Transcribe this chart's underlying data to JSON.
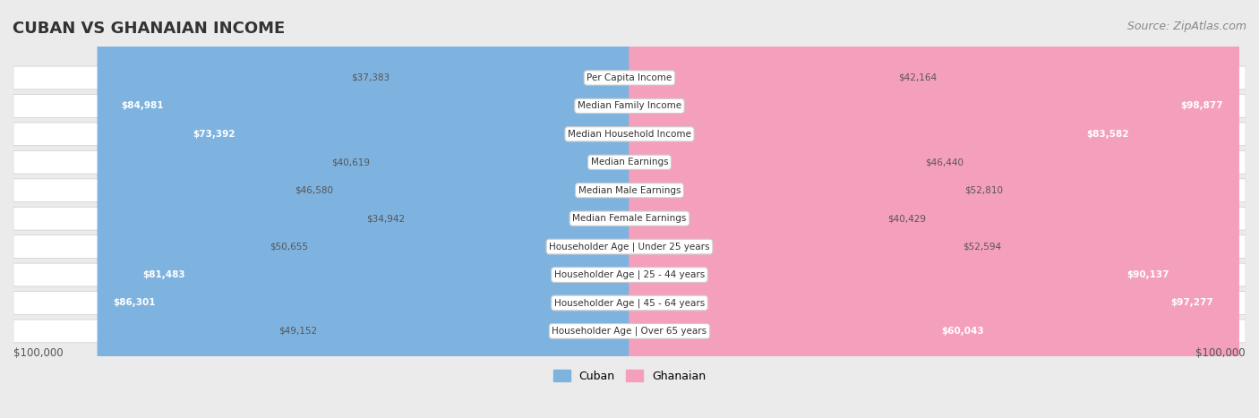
{
  "title": "CUBAN VS GHANAIAN INCOME",
  "source": "Source: ZipAtlas.com",
  "categories": [
    "Per Capita Income",
    "Median Family Income",
    "Median Household Income",
    "Median Earnings",
    "Median Male Earnings",
    "Median Female Earnings",
    "Householder Age | Under 25 years",
    "Householder Age | 25 - 44 years",
    "Householder Age | 45 - 64 years",
    "Householder Age | Over 65 years"
  ],
  "cuban_values": [
    37383,
    84981,
    73392,
    40619,
    46580,
    34942,
    50655,
    81483,
    86301,
    49152
  ],
  "ghanaian_values": [
    42164,
    98877,
    83582,
    46440,
    52810,
    40429,
    52594,
    90137,
    97277,
    60043
  ],
  "cuban_labels": [
    "$37,383",
    "$84,981",
    "$73,392",
    "$40,619",
    "$46,580",
    "$34,942",
    "$50,655",
    "$81,483",
    "$86,301",
    "$49,152"
  ],
  "ghanaian_labels": [
    "$42,164",
    "$98,877",
    "$83,582",
    "$46,440",
    "$52,810",
    "$40,429",
    "$52,594",
    "$90,137",
    "$97,277",
    "$60,043"
  ],
  "cuban_color": "#7EB3E0",
  "ghanaian_color": "#F4A0BC",
  "max_value": 100000,
  "bg_color": "#ebebeb",
  "row_bg": "#ffffff"
}
